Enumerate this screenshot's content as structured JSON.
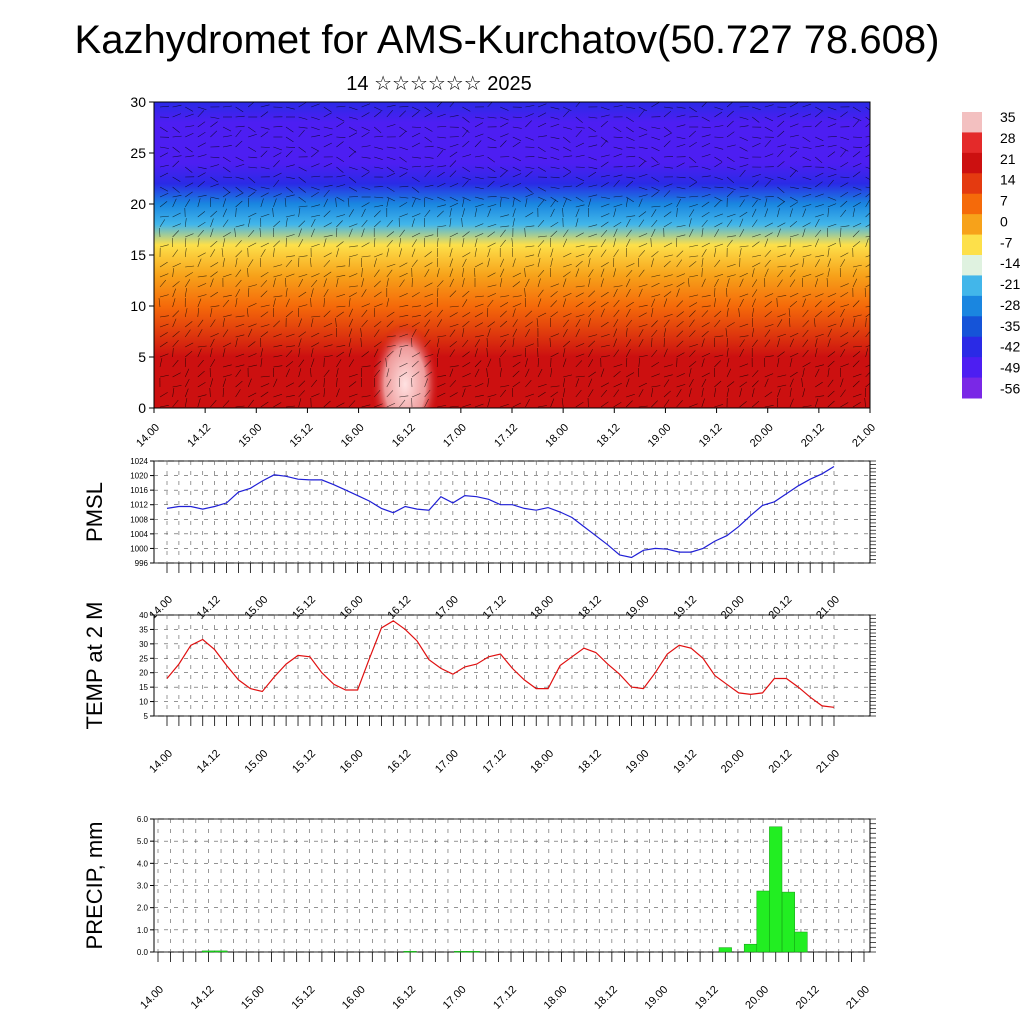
{
  "header": {
    "title": "Kazhydromet for AMS-Kurchatov(50.727 78.608)",
    "subtitle": "14 ☆☆☆☆☆☆ 2025"
  },
  "x_ticks": [
    "14.00",
    "14.12",
    "15.00",
    "15.12",
    "16.00",
    "16.12",
    "17.00",
    "17.12",
    "18.00",
    "18.12",
    "19.00",
    "19.12",
    "20.00",
    "20.12",
    "21.00"
  ],
  "colors": {
    "pmsl_line": "#1f1fd6",
    "temp_line": "#e01010",
    "precip_bar": "#22ee22",
    "grid": "#555555"
  },
  "chart_data": [
    {
      "type": "heatmap",
      "id": "upper-air",
      "title": "",
      "xlabel": "",
      "ylabel": "",
      "y_ticks": [
        "0",
        "5",
        "10",
        "15",
        "20",
        "25",
        "30"
      ],
      "ylim": [
        0,
        30
      ],
      "wind_barbs": true,
      "colorbar": {
        "labels": [
          "35",
          "28",
          "21",
          "14",
          "7",
          "0",
          "-7",
          "-14",
          "-21",
          "-28",
          "-35",
          "-42",
          "-49",
          "-56"
        ],
        "colors": [
          "#f3c0c0",
          "#e42a2a",
          "#cc1010",
          "#e43a10",
          "#f56a0a",
          "#f7a21a",
          "#fde04a",
          "#dff2e0",
          "#42b6ea",
          "#1a86e0",
          "#1554d8",
          "#2a2ae6",
          "#4d1ef2",
          "#7a28e6"
        ]
      },
      "profile": [
        {
          "level": 0,
          "temp": 18
        },
        {
          "level": 5,
          "temp": 20
        },
        {
          "level": 10,
          "temp": 3
        },
        {
          "level": 13,
          "temp": -4
        },
        {
          "level": 16,
          "temp": -12
        },
        {
          "level": 18,
          "temp": -22
        },
        {
          "level": 20,
          "temp": -32
        },
        {
          "level": 22,
          "temp": -45
        },
        {
          "level": 24,
          "temp": -55
        },
        {
          "level": 26,
          "temp": -56
        },
        {
          "level": 28,
          "temp": -50
        },
        {
          "level": 30,
          "temp": -48
        }
      ]
    },
    {
      "type": "line",
      "id": "pmsl",
      "ylabel": "PMSL",
      "ylim": [
        996,
        1024
      ],
      "y_ticks": [
        "996",
        "1000",
        "1004",
        "1008",
        "1012",
        "1016",
        "1020",
        "1024"
      ],
      "x_hours": [
        0,
        3,
        6,
        9,
        12,
        15,
        18,
        21,
        24,
        27,
        30,
        33,
        36,
        39,
        42,
        45,
        48,
        51,
        54,
        57,
        60,
        63,
        66,
        69,
        72,
        75,
        78,
        81,
        84,
        87,
        90,
        93,
        96,
        99,
        102,
        105,
        108,
        111,
        114,
        117,
        120,
        123,
        126,
        129,
        132,
        135,
        138,
        141,
        144,
        147,
        150,
        153,
        156,
        159,
        162,
        165,
        168
      ],
      "values": [
        1011,
        1011.5,
        1011.5,
        1010.8,
        1011.5,
        1012.5,
        1015.5,
        1016.5,
        1018.5,
        1020.2,
        1019.8,
        1019,
        1018.8,
        1018.8,
        1017.5,
        1016,
        1014.5,
        1013,
        1011,
        1009.8,
        1011.5,
        1010.8,
        1010.5,
        1014.2,
        1012.5,
        1014.5,
        1014.2,
        1013.5,
        1012,
        1012,
        1011,
        1010.5,
        1011.2,
        1010,
        1008.5,
        1006,
        1003.5,
        1001,
        998.2,
        997.5,
        999.5,
        1000,
        999.8,
        999,
        999,
        1000,
        1002,
        1003.5,
        1006,
        1009,
        1011.8,
        1012.8,
        1015,
        1017.2,
        1019,
        1020.5,
        1022.5
      ]
    },
    {
      "type": "line",
      "id": "temp",
      "ylabel": "TEMP at 2 M",
      "ylim": [
        5,
        40
      ],
      "y_ticks": [
        "5",
        "10",
        "15",
        "20",
        "25",
        "30",
        "35",
        "40"
      ],
      "x_hours": [
        0,
        3,
        6,
        9,
        12,
        15,
        18,
        21,
        24,
        27,
        30,
        33,
        36,
        39,
        42,
        45,
        48,
        51,
        54,
        57,
        60,
        63,
        66,
        69,
        72,
        75,
        78,
        81,
        84,
        87,
        90,
        93,
        96,
        99,
        102,
        105,
        108,
        111,
        114,
        117,
        120,
        123,
        126,
        129,
        132,
        135,
        138,
        141,
        144,
        147,
        150,
        153,
        156,
        159,
        162,
        165,
        168
      ],
      "values": [
        18,
        23,
        29.5,
        31.5,
        28,
        22.5,
        17.5,
        14.5,
        13.5,
        18.5,
        23,
        26,
        25.5,
        20,
        16,
        14,
        14,
        25,
        35.5,
        38,
        35,
        31,
        24.5,
        21.5,
        19.5,
        22,
        23,
        25.5,
        26.5,
        21.5,
        17.5,
        14.5,
        14.5,
        22.5,
        25.5,
        28.5,
        27,
        23,
        19.5,
        15,
        14.5,
        20,
        26.5,
        29.5,
        28.5,
        25,
        19,
        16,
        13,
        12.5,
        13,
        18,
        18,
        15,
        11.5,
        8.5,
        8
      ]
    },
    {
      "type": "bar",
      "id": "precip",
      "ylabel": "PRECIP, mm",
      "ylim": [
        0,
        6
      ],
      "y_ticks": [
        "0.0",
        "1.0",
        "2.0",
        "3.0",
        "4.0",
        "5.0",
        "6.0"
      ],
      "x_hours": [
        12,
        15,
        60,
        72,
        75,
        135,
        141,
        144,
        147,
        150,
        153
      ],
      "values": [
        0.05,
        0.05,
        0.03,
        0.03,
        0.03,
        0.2,
        0.35,
        2.75,
        5.65,
        2.7,
        0.9
      ]
    }
  ]
}
